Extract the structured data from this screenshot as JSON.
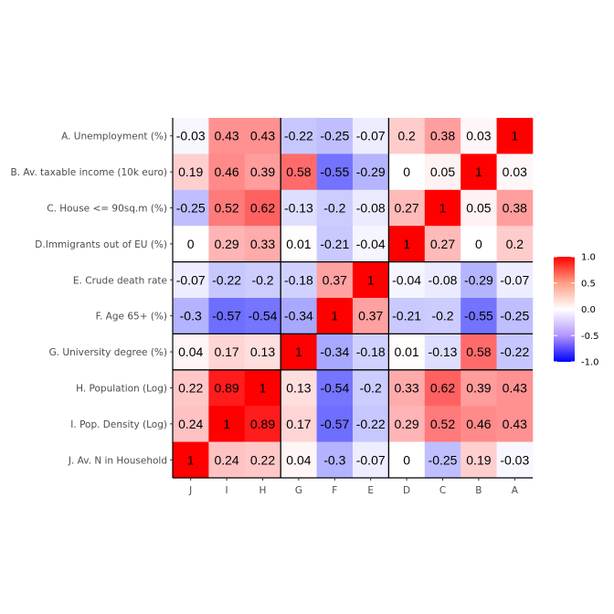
{
  "chart_data": {
    "type": "heatmap",
    "title": "",
    "xlabel": "",
    "ylabel": "",
    "x_categories": [
      "J",
      "I",
      "H",
      "G",
      "F",
      "E",
      "D",
      "C",
      "B",
      "A"
    ],
    "y_categories": [
      "A. Unemployment (%)",
      "B. Av. taxable income (10k euro)",
      "C. House <= 90sq.m (%)",
      "D.Immigrants out of EU (%)",
      "E. Crude death rate",
      "F. Age 65+ (%)",
      "G. University degree (%)",
      "H. Population (Log)",
      "I. Pop. Density (Log)",
      "J. Av. N in Household"
    ],
    "values": [
      [
        -0.03,
        0.43,
        0.43,
        -0.22,
        -0.25,
        -0.07,
        0.2,
        0.38,
        0.03,
        1
      ],
      [
        0.19,
        0.46,
        0.39,
        0.58,
        -0.55,
        -0.29,
        0,
        0.05,
        1,
        0.03
      ],
      [
        -0.25,
        0.52,
        0.62,
        -0.13,
        -0.2,
        -0.08,
        0.27,
        1,
        0.05,
        0.38
      ],
      [
        0,
        0.29,
        0.33,
        0.01,
        -0.21,
        -0.04,
        1,
        0.27,
        0,
        0.2
      ],
      [
        -0.07,
        -0.22,
        -0.2,
        -0.18,
        0.37,
        1,
        -0.04,
        -0.08,
        -0.29,
        -0.07
      ],
      [
        -0.3,
        -0.57,
        -0.54,
        -0.34,
        1,
        0.37,
        -0.21,
        -0.2,
        -0.55,
        -0.25
      ],
      [
        0.04,
        0.17,
        0.13,
        1,
        -0.34,
        -0.18,
        0.01,
        -0.13,
        0.58,
        -0.22
      ],
      [
        0.22,
        0.89,
        1,
        0.13,
        -0.54,
        -0.2,
        0.33,
        0.62,
        0.39,
        0.43
      ],
      [
        0.24,
        1,
        0.89,
        0.17,
        -0.57,
        -0.22,
        0.29,
        0.52,
        0.46,
        0.43
      ],
      [
        1,
        0.24,
        0.22,
        0.04,
        -0.3,
        -0.07,
        0,
        -0.25,
        0.19,
        -0.03
      ]
    ],
    "color_scale": {
      "low": "#0000ff",
      "mid": "#ffffff",
      "high": "#ff0000",
      "range": [
        -1,
        1
      ]
    },
    "legend": {
      "position": "right",
      "ticks": [
        1.0,
        0.5,
        0.0,
        -0.5,
        -1.0
      ],
      "tick_labels": [
        "1.0",
        "0.5",
        "0.0",
        "-0.5",
        "-1.0"
      ]
    },
    "block_separators": {
      "vertical_after_columns": [
        3,
        6
      ],
      "horizontal_after_rows": [
        4,
        6,
        7
      ]
    },
    "grid": false
  }
}
